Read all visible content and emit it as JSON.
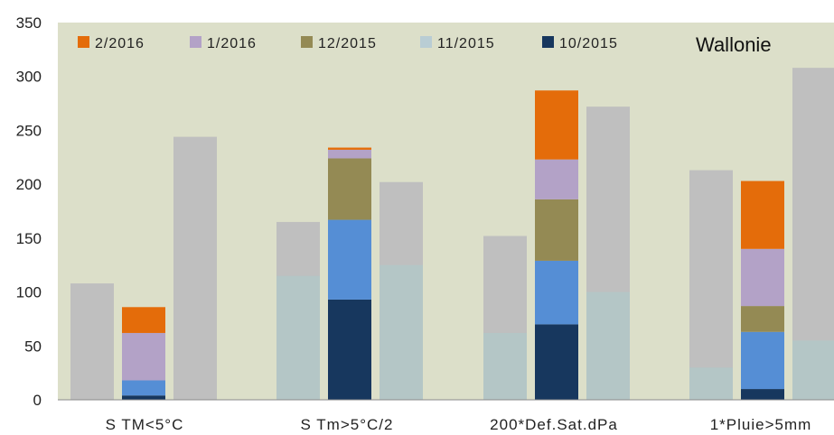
{
  "chart_data": {
    "type": "bar",
    "title": "Wallonie",
    "categories": [
      "S TM<5°C",
      "S Tm>5°C/2",
      "200*Def.Sat.dPa",
      "1*Pluie>5mm"
    ],
    "ylim": [
      0,
      350
    ],
    "yticks": [
      0,
      50,
      100,
      150,
      200,
      250,
      300,
      350
    ],
    "legend_position": "top",
    "legend": [
      {
        "label": "2/2016",
        "color": "#e46c0a"
      },
      {
        "label": "1/2016",
        "color": "#b3a2c7"
      },
      {
        "label": "12/2015",
        "color": "#948a54"
      },
      {
        "label": "11/2015",
        "color": "#b9cdd4"
      },
      {
        "label": "10/2015",
        "color": "#17375e"
      }
    ],
    "reference_bars": [
      {
        "category": "S TM<5°C",
        "left_total": 108,
        "right_total": 244,
        "left_inner": 0,
        "right_inner": 0
      },
      {
        "category": "S Tm>5°C/2",
        "left_total": 165,
        "right_total": 202,
        "left_inner": 115,
        "right_inner": 125
      },
      {
        "category": "200*Def.Sat.dPa",
        "left_total": 152,
        "right_total": 272,
        "left_inner": 62,
        "right_inner": 100
      },
      {
        "category": "1*Pluie>5mm",
        "left_total": 213,
        "right_total": 308,
        "left_inner": 30,
        "right_inner": 55
      }
    ],
    "stacked_series": [
      {
        "name": "10/2015",
        "color": "#17375e",
        "values": [
          4,
          93,
          70,
          10
        ]
      },
      {
        "name": "11/2015",
        "color": "#558ed5",
        "values": [
          14,
          74,
          59,
          53
        ]
      },
      {
        "name": "12/2015",
        "color": "#948a54",
        "values": [
          0,
          57,
          57,
          24
        ]
      },
      {
        "name": "1/2016",
        "color": "#b3a2c7",
        "values": [
          44,
          8,
          37,
          53
        ]
      },
      {
        "name": "2/2016",
        "color": "#e46c0a",
        "values": [
          24,
          2,
          64,
          63
        ]
      }
    ]
  }
}
